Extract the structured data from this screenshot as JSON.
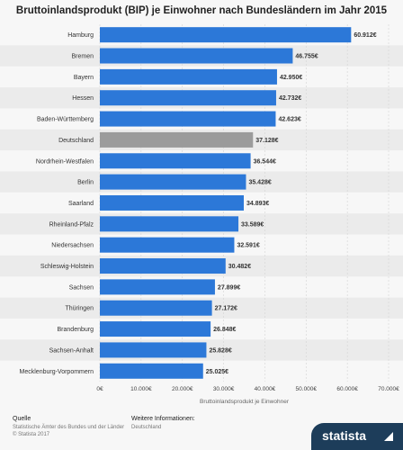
{
  "chart_data": {
    "type": "bar",
    "orientation": "horizontal",
    "title": "Bruttoinlandsprodukt (BIP) je Einwohner nach Bundesländern im Jahr 2015",
    "xlabel": "Bruttoinlandsprodukt je Einwohner",
    "ylabel": "",
    "xlim": [
      0,
      70000
    ],
    "grid": true,
    "categories": [
      "Hamburg",
      "Bremen",
      "Bayern",
      "Hessen",
      "Baden-Württemberg",
      "Deutschland",
      "Nordrhein-Westfalen",
      "Berlin",
      "Saarland",
      "Rheinland-Pfalz",
      "Niedersachsen",
      "Schleswig-Holstein",
      "Sachsen",
      "Thüringen",
      "Brandenburg",
      "Sachsen-Anhalt",
      "Mecklenburg-Vorpommern"
    ],
    "values": [
      60912,
      46755,
      42950,
      42732,
      42623,
      37128,
      36544,
      35428,
      34893,
      33589,
      32591,
      30482,
      27899,
      27172,
      26848,
      25828,
      25025
    ],
    "value_labels": [
      "60.912€",
      "46.755€",
      "42.950€",
      "42.732€",
      "42.623€",
      "37.128€",
      "36.544€",
      "35.428€",
      "34.893€",
      "33.589€",
      "32.591€",
      "30.482€",
      "27.899€",
      "27.172€",
      "26.848€",
      "25.828€",
      "25.025€"
    ],
    "tick_labels": [
      "0€",
      "10.000€",
      "20.000€",
      "30.000€",
      "40.000€",
      "50.000€",
      "60.000€",
      "70.000€"
    ],
    "highlight_category": "Deutschland",
    "colors": {
      "bar": "#2c78d8",
      "highlight": "#9b9b9b",
      "band": "#ebebeb"
    }
  },
  "footer": {
    "source_label": "Quelle",
    "source_text": "Statistische Ämter des Bundes und der Länder",
    "copyright": "© Statista 2017",
    "info_label": "Weitere Informationen:",
    "info_text": "Deutschland"
  },
  "brand": "statista"
}
